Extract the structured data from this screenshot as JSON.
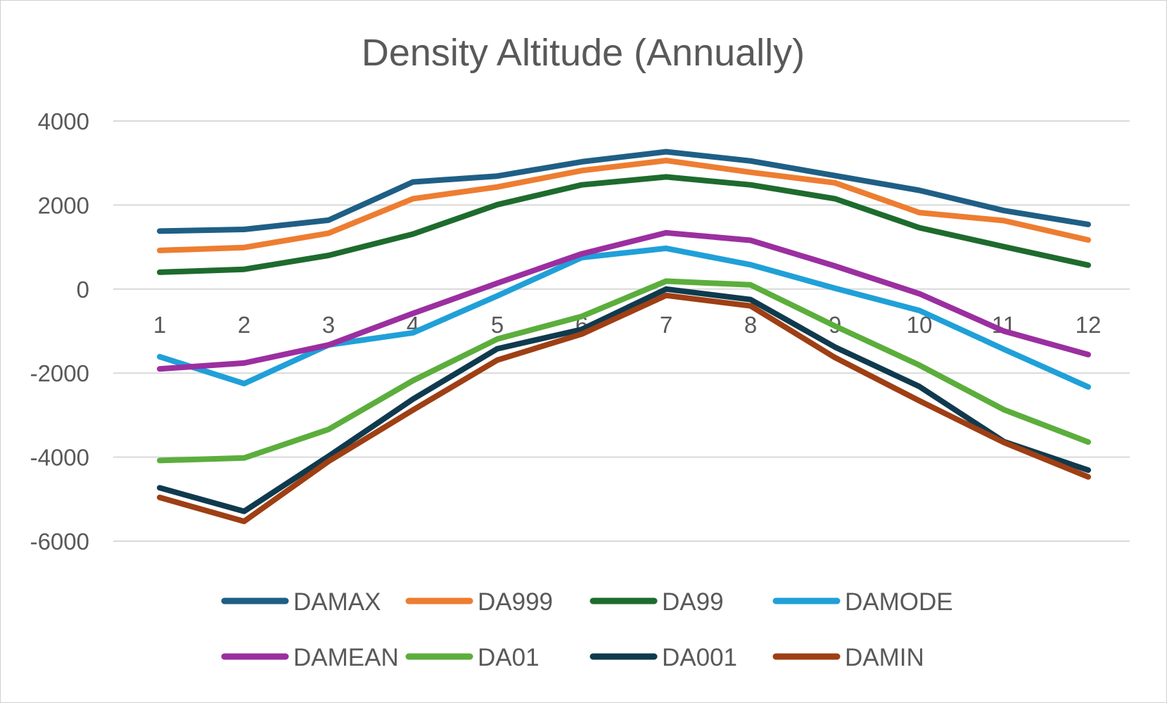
{
  "chart_data": {
    "type": "line",
    "title": "Density Altitude (Annually)",
    "xlabel": "",
    "ylabel": "",
    "categories": [
      "1",
      "2",
      "3",
      "4",
      "5",
      "6",
      "7",
      "8",
      "9",
      "10",
      "11",
      "12"
    ],
    "ylim": [
      -6000,
      4000
    ],
    "yticks": [
      "4000",
      "2000",
      "0",
      "-2000",
      "-4000",
      "-6000"
    ],
    "grid": true,
    "legend_position": "bottom",
    "series": [
      {
        "name": "DAMAX",
        "color": "#1f5f85",
        "values": [
          1380,
          1420,
          1640,
          2550,
          2690,
          3030,
          3270,
          3050,
          2700,
          2350,
          1870,
          1540
        ]
      },
      {
        "name": "DA999",
        "color": "#ed7d31",
        "values": [
          920,
          990,
          1330,
          2150,
          2430,
          2820,
          3060,
          2780,
          2530,
          1820,
          1630,
          1170
        ]
      },
      {
        "name": "DA99",
        "color": "#1e6b2e",
        "values": [
          400,
          470,
          800,
          1310,
          2010,
          2480,
          2670,
          2480,
          2150,
          1460,
          1010,
          570
        ]
      },
      {
        "name": "DAMODE",
        "color": "#20a0d8",
        "values": [
          -1610,
          -2250,
          -1330,
          -1040,
          -160,
          750,
          970,
          580,
          20,
          -510,
          -1430,
          -2330
        ]
      },
      {
        "name": "DAMEAN",
        "color": "#9b2fa0",
        "values": [
          -1900,
          -1760,
          -1330,
          -580,
          140,
          840,
          1340,
          1160,
          550,
          -110,
          -1000,
          -1560
        ]
      },
      {
        "name": "DA01",
        "color": "#5bae3c",
        "values": [
          -4080,
          -4020,
          -3340,
          -2180,
          -1190,
          -650,
          190,
          100,
          -880,
          -1810,
          -2870,
          -3640
        ]
      },
      {
        "name": "DA001",
        "color": "#0f3a4e",
        "values": [
          -4730,
          -5290,
          -3980,
          -2620,
          -1420,
          -960,
          0,
          -250,
          -1380,
          -2320,
          -3630,
          -4310
        ]
      },
      {
        "name": "DAMIN",
        "color": "#9e3f14",
        "values": [
          -4960,
          -5530,
          -4100,
          -2880,
          -1690,
          -1070,
          -150,
          -400,
          -1630,
          -2660,
          -3650,
          -4470
        ]
      }
    ]
  }
}
